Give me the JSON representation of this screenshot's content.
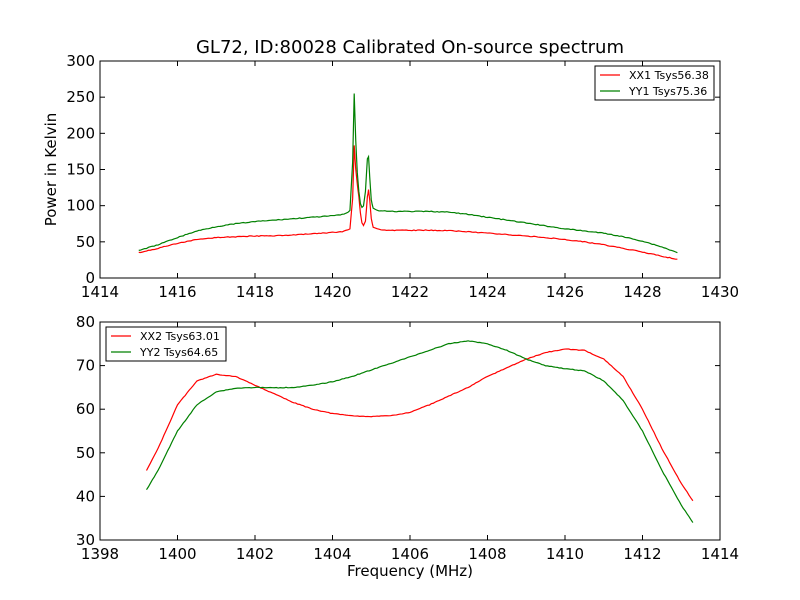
{
  "figure_title": "GL72, ID:80028 Calibrated On-source spectrum",
  "colors": {
    "xx": "#ff0000",
    "yy": "#008000",
    "frame": "#000000",
    "background": "#ffffff"
  },
  "chart_data": [
    {
      "type": "line",
      "title": "GL72, ID:80028 Calibrated On-source spectrum",
      "xlabel": "",
      "ylabel": "Power in Kelvin",
      "xlim": [
        1414,
        1430
      ],
      "ylim": [
        0,
        300
      ],
      "x_ticks": [
        1414,
        1416,
        1418,
        1420,
        1422,
        1424,
        1426,
        1428,
        1430
      ],
      "y_ticks": [
        0,
        50,
        100,
        150,
        200,
        250,
        300
      ],
      "legend_position": "top-right",
      "grid": false,
      "series": [
        {
          "name": "XX1 Tsys56.38",
          "color": "#ff0000",
          "x": [
            1415.0,
            1415.5,
            1416.0,
            1416.5,
            1417.0,
            1417.5,
            1418.0,
            1418.5,
            1419.0,
            1419.5,
            1420.0,
            1420.3,
            1420.45,
            1420.52,
            1420.56,
            1420.6,
            1420.64,
            1420.68,
            1420.72,
            1420.76,
            1420.8,
            1420.85,
            1420.9,
            1420.93,
            1420.96,
            1421.0,
            1421.05,
            1421.2,
            1421.5,
            1422.0,
            1422.5,
            1423.0,
            1423.5,
            1424.0,
            1424.5,
            1425.0,
            1425.5,
            1426.0,
            1426.5,
            1427.0,
            1427.5,
            1428.0,
            1428.5,
            1428.9
          ],
          "y": [
            35,
            41,
            48,
            53,
            56,
            57,
            58,
            58.5,
            59.5,
            61,
            63,
            64.5,
            68,
            110,
            183,
            150,
            130,
            112,
            90,
            76,
            73,
            78,
            112,
            122,
            108,
            82,
            70,
            67,
            66,
            66,
            66,
            65.5,
            64,
            62,
            60,
            58,
            56,
            53,
            50,
            46,
            41,
            36,
            30,
            26
          ]
        },
        {
          "name": "YY1 Tsys75.36",
          "color": "#008000",
          "x": [
            1415.0,
            1415.5,
            1416.0,
            1416.5,
            1417.0,
            1417.5,
            1418.0,
            1418.5,
            1419.0,
            1419.5,
            1420.0,
            1420.3,
            1420.45,
            1420.52,
            1420.56,
            1420.6,
            1420.64,
            1420.68,
            1420.72,
            1420.76,
            1420.8,
            1420.85,
            1420.9,
            1420.93,
            1420.96,
            1421.0,
            1421.05,
            1421.2,
            1421.5,
            1422.0,
            1422.5,
            1423.0,
            1423.5,
            1424.0,
            1424.5,
            1425.0,
            1425.5,
            1426.0,
            1426.5,
            1427.0,
            1427.5,
            1428.0,
            1428.5,
            1428.9
          ],
          "y": [
            38,
            46,
            56,
            65,
            71,
            75,
            78,
            80,
            82,
            84,
            86,
            88,
            93,
            160,
            255,
            190,
            145,
            120,
            103,
            98,
            100,
            120,
            165,
            168,
            140,
            108,
            96,
            93,
            92,
            92,
            92,
            91,
            88,
            84,
            80,
            76,
            72,
            68,
            65,
            62,
            57,
            51,
            43,
            35
          ]
        }
      ]
    },
    {
      "type": "line",
      "title": "",
      "xlabel": "Frequency (MHz)",
      "ylabel": "",
      "xlim": [
        1398,
        1414
      ],
      "ylim": [
        30,
        80
      ],
      "x_ticks": [
        1398,
        1400,
        1402,
        1404,
        1406,
        1408,
        1410,
        1412,
        1414
      ],
      "y_ticks": [
        30,
        40,
        50,
        60,
        70,
        80
      ],
      "legend_position": "top-left",
      "grid": false,
      "series": [
        {
          "name": "XX2 Tsys63.01",
          "color": "#ff0000",
          "x": [
            1399.2,
            1399.5,
            1400.0,
            1400.5,
            1401.0,
            1401.5,
            1402.0,
            1402.5,
            1403.0,
            1403.5,
            1404.0,
            1404.5,
            1405.0,
            1405.5,
            1406.0,
            1406.5,
            1407.0,
            1407.5,
            1408.0,
            1408.5,
            1409.0,
            1409.5,
            1410.0,
            1410.5,
            1411.0,
            1411.5,
            1412.0,
            1412.5,
            1413.0,
            1413.3
          ],
          "y": [
            46,
            51,
            61,
            66.5,
            68,
            67.5,
            65.5,
            63.5,
            61.5,
            60,
            59,
            58.5,
            58.3,
            58.5,
            59.3,
            61,
            63,
            65,
            67.5,
            69.5,
            71.5,
            73,
            73.8,
            73.5,
            71.5,
            67.5,
            60,
            51,
            43,
            39
          ]
        },
        {
          "name": "YY2 Tsys64.65",
          "color": "#008000",
          "x": [
            1399.2,
            1399.5,
            1400.0,
            1400.5,
            1401.0,
            1401.5,
            1402.0,
            1402.5,
            1403.0,
            1403.5,
            1404.0,
            1404.5,
            1405.0,
            1405.5,
            1406.0,
            1406.5,
            1407.0,
            1407.5,
            1408.0,
            1408.5,
            1409.0,
            1409.5,
            1410.0,
            1410.5,
            1411.0,
            1411.5,
            1412.0,
            1412.5,
            1413.0,
            1413.3
          ],
          "y": [
            41.5,
            46,
            55,
            61,
            64,
            64.8,
            65,
            64.9,
            65,
            65.5,
            66.3,
            67.5,
            69,
            70.5,
            72,
            73.5,
            75,
            75.7,
            75,
            73.5,
            71.5,
            70,
            69.3,
            68.8,
            66.5,
            62,
            55,
            46,
            38,
            34
          ]
        }
      ]
    }
  ]
}
